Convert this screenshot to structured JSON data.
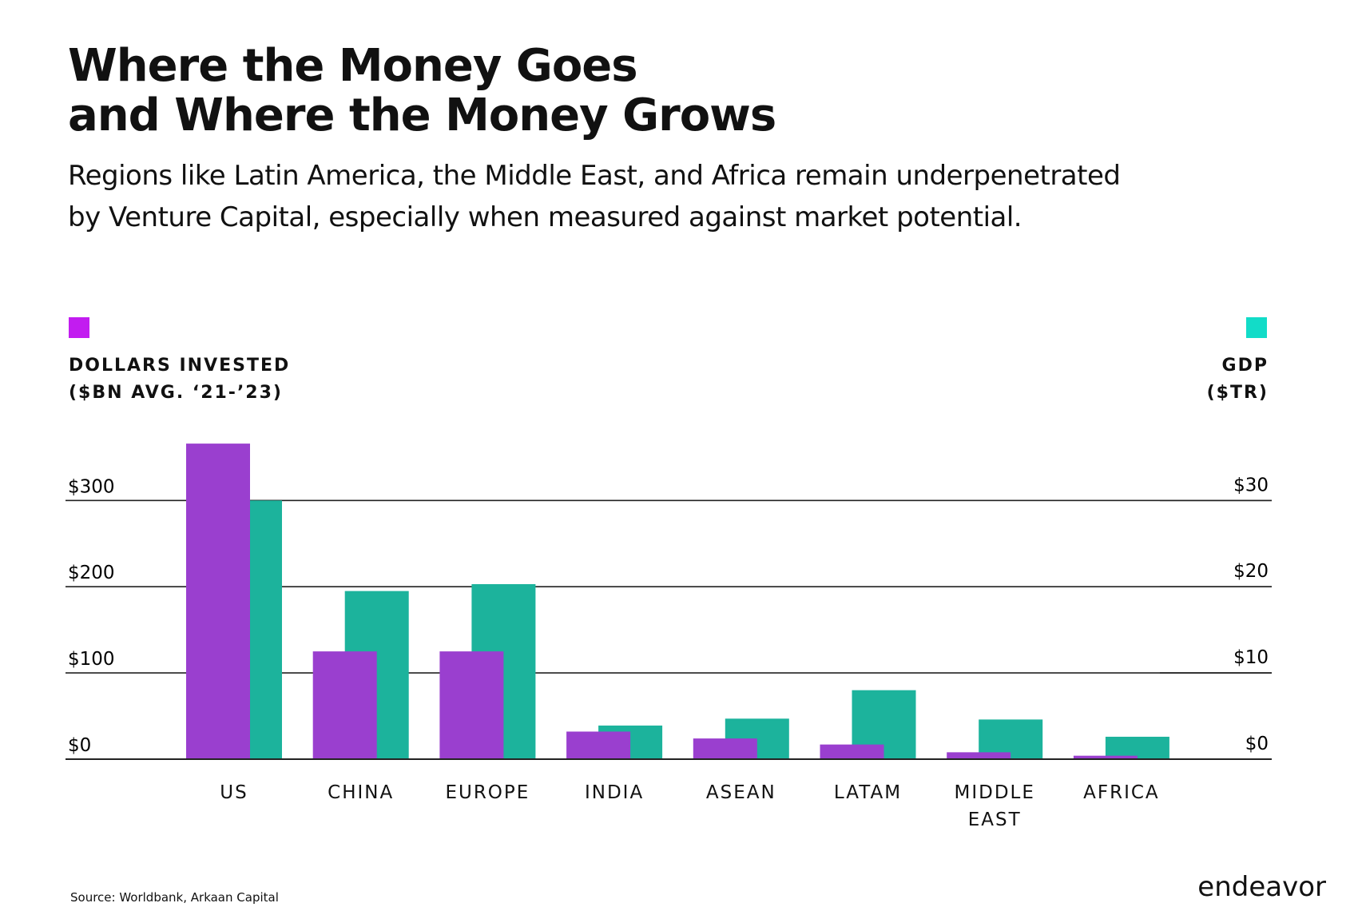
{
  "title": [
    "Where the Money Goes",
    "and Where the Money Grows"
  ],
  "subtitle": [
    "Regions like Latin America, the Middle East, and Africa remain underpenetrated",
    "by Venture Capital, especially when measured against market potential."
  ],
  "source": "Source: Worldbank, Arkaan Capital",
  "brand": "endeavor",
  "chart_data": {
    "type": "bar",
    "categories": [
      "US",
      "CHINA",
      "EUROPE",
      "INDIA",
      "ASEAN",
      "LATAM",
      "MIDDLE EAST",
      "AFRICA"
    ],
    "series": [
      {
        "name": "DOLLARS INVESTED",
        "color": "#9a3fcf",
        "legend_color": "#c21cf0",
        "values": [
          366,
          125,
          125,
          32,
          24,
          17,
          8,
          4
        ]
      },
      {
        "name": "GDP",
        "color": "#1cb39c",
        "legend_color": "#12dcc8",
        "axis": "y2",
        "values": [
          30,
          19.5,
          20.3,
          3.9,
          4.7,
          8,
          4.6,
          2.6
        ]
      }
    ],
    "ylabel": "($BN AVG. ‘21-’23)",
    "y2label": "($TR)",
    "ylim": [
      0,
      380
    ],
    "yticks": [
      {
        "value": 0,
        "label": "$0"
      },
      {
        "value": 100,
        "label": "$100"
      },
      {
        "value": 200,
        "label": "$200"
      },
      {
        "value": 300,
        "label": "$300"
      }
    ],
    "y2lim": [
      0,
      38
    ],
    "y2ticks": [
      {
        "value": 0,
        "label": "$0"
      },
      {
        "value": 10,
        "label": "$10"
      },
      {
        "value": 20,
        "label": "$20"
      },
      {
        "value": 30,
        "label": "$30"
      }
    ],
    "grid": true
  }
}
